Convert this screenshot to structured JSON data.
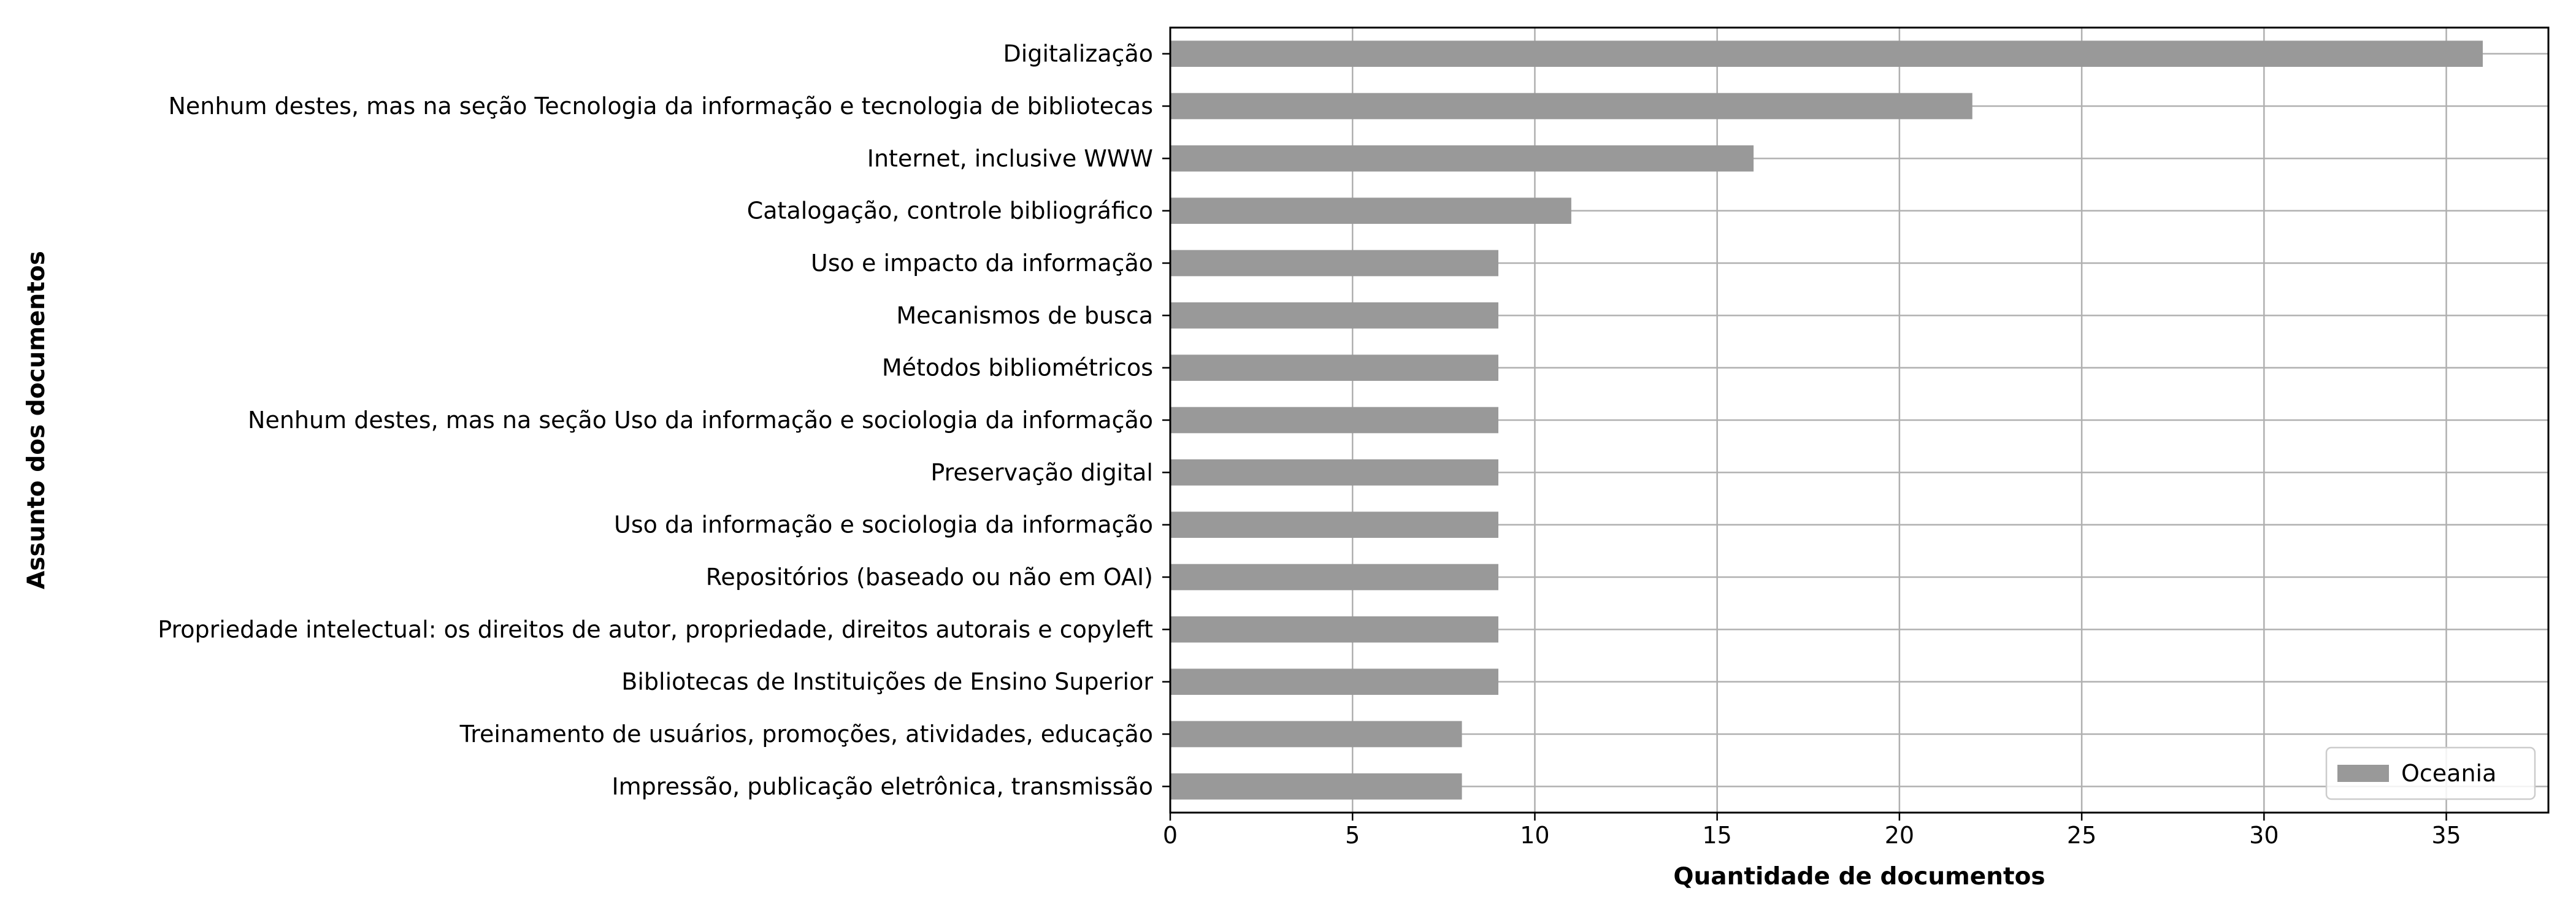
{
  "colors": {
    "bar": "#999999",
    "grid": "#b0b0b0",
    "frame": "#000000",
    "legend_border": "#cccccc"
  },
  "chart_data": {
    "type": "bar",
    "orientation": "horizontal",
    "categories": [
      "Digitalização",
      "Nenhum destes, mas na seção Tecnologia da informação e tecnologia de bibliotecas",
      "Internet, inclusive WWW",
      "Catalogação, controle bibliográfico",
      "Uso e impacto da informação",
      "Mecanismos de busca",
      "Métodos bibliométricos",
      "Nenhum destes, mas na seção Uso da informação e sociologia da informação",
      "Preservação digital",
      "Uso da informação e sociologia da informação",
      "Repositórios (baseado ou não em OAI)",
      "Propriedade intelectual: os direitos de autor, propriedade, direitos autorais e copyleft",
      "Bibliotecas de Instituições de Ensino Superior",
      "Treinamento de usuários, promoções, atividades, educação",
      "Impressão, publicação eletrônica, transmissão"
    ],
    "series": [
      {
        "name": "Oceania",
        "values": [
          36,
          22,
          16,
          11,
          9,
          9,
          9,
          9,
          9,
          9,
          9,
          9,
          9,
          8,
          8
        ]
      }
    ],
    "xlabel": "Quantidade de documentos",
    "ylabel": "Assunto dos documentos",
    "xlim": [
      0,
      37.8
    ],
    "xticks": [
      0,
      5,
      10,
      15,
      20,
      25,
      30,
      35
    ],
    "grid": true,
    "legend_position": "lower-right"
  }
}
